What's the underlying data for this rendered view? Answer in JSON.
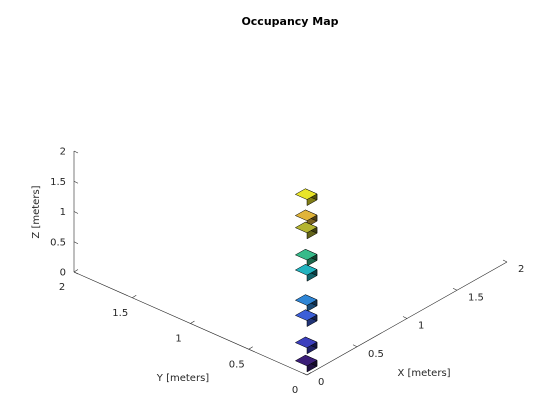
{
  "chart_data": {
    "type": "scatter",
    "subtype": "3d-voxel-occupancy",
    "title": "Occupancy Map",
    "xlabel": "X [meters]",
    "ylabel": "Y [meters]",
    "zlabel": "Z [meters]",
    "xlim": [
      0,
      2
    ],
    "ylim": [
      0,
      2
    ],
    "zlim": [
      0,
      2
    ],
    "xticks": [
      "0",
      "0.5",
      "1",
      "1.5",
      "2"
    ],
    "yticks": [
      "0",
      "0.5",
      "1",
      "1.5",
      "2"
    ],
    "zticks": [
      "0",
      "0.5",
      "1",
      "1.5",
      "2"
    ],
    "grid": false,
    "voxel_size": 0.1,
    "voxels": [
      {
        "x": 0.0,
        "y": 0.0,
        "z": 0.05,
        "color": "#3b1e78"
      },
      {
        "x": 0.0,
        "y": 0.0,
        "z": 0.35,
        "color": "#3c3fbd"
      },
      {
        "x": 0.0,
        "y": 0.0,
        "z": 0.8,
        "color": "#3c5fd8"
      },
      {
        "x": 0.0,
        "y": 0.0,
        "z": 1.05,
        "color": "#2f86d6"
      },
      {
        "x": 0.0,
        "y": 0.0,
        "z": 1.55,
        "color": "#22b4c0"
      },
      {
        "x": 0.0,
        "y": 0.0,
        "z": 1.8,
        "color": "#37bb8a"
      },
      {
        "x": 0.0,
        "y": 0.0,
        "z": 2.25,
        "color": "#b4b530"
      },
      {
        "x": 0.0,
        "y": 0.0,
        "z": 2.45,
        "color": "#e0b43a"
      },
      {
        "x": 0.0,
        "y": 0.0,
        "z": 2.8,
        "color": "#e8e42a"
      }
    ]
  }
}
